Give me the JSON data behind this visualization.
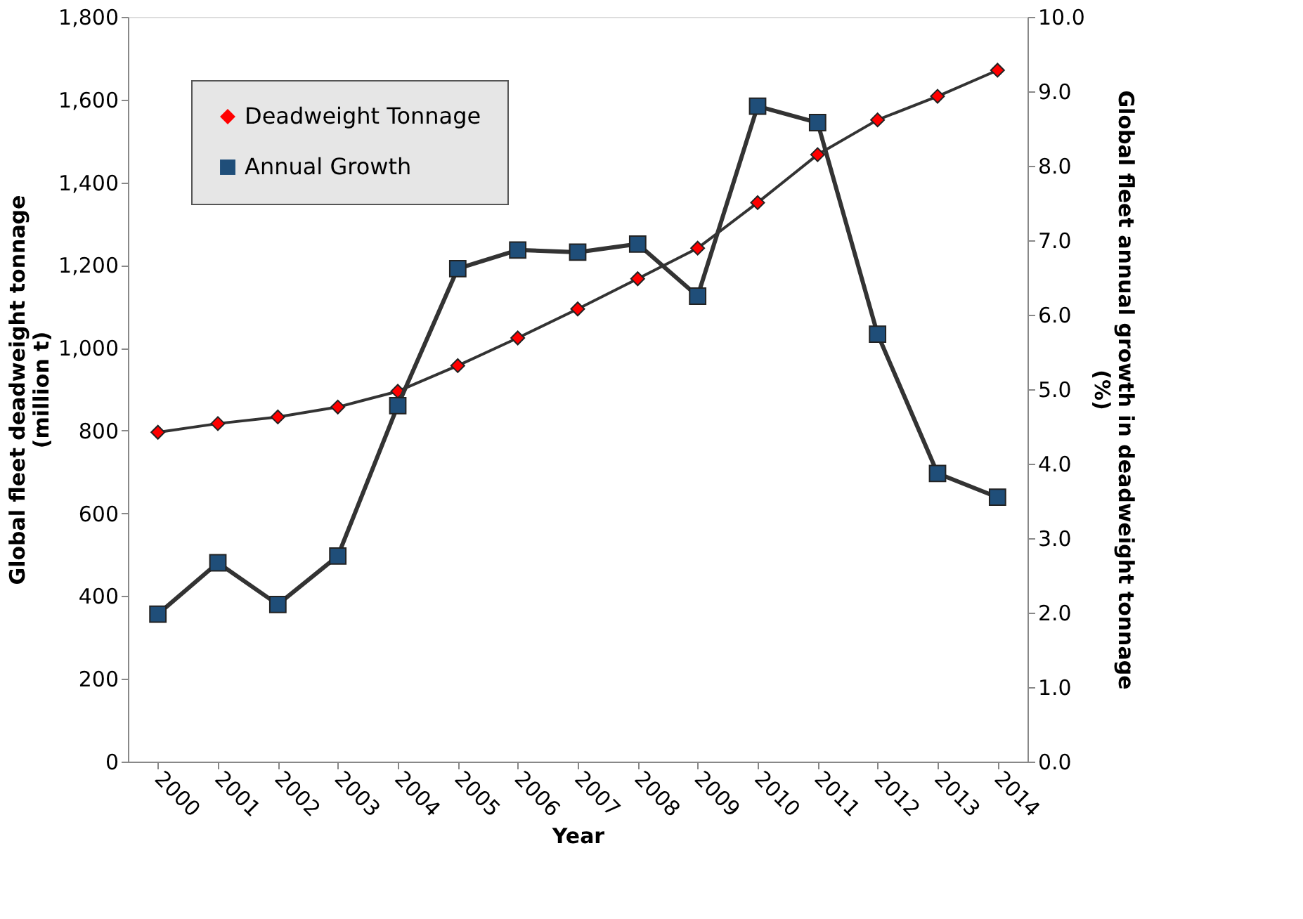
{
  "chart_data": {
    "type": "line",
    "xlabel": "Year",
    "ylabel": "Global fleet deadweight tonnage\n(million t)",
    "y2label": "Global fleet annual growth in deadweight tonnage\n(%)",
    "categories": [
      "2000",
      "2001",
      "2002",
      "2003",
      "2004",
      "2005",
      "2006",
      "2007",
      "2008",
      "2009",
      "2010",
      "2011",
      "2012",
      "2013",
      "2014"
    ],
    "series": [
      {
        "name": "Deadweight Tonnage",
        "color": "#ff0000",
        "marker": "diamond",
        "values": [
          796,
          817,
          833,
          857,
          895,
          957,
          1024,
          1094,
          1167,
          1241,
          1351,
          1467,
          1551,
          1608,
          1671
        ]
      },
      {
        "name": "Annual Growth",
        "color": "#1f4e79",
        "marker": "square",
        "axis": "y2",
        "values": [
          1.98,
          2.67,
          2.11,
          2.76,
          4.78,
          6.62,
          6.87,
          6.84,
          6.95,
          6.25,
          8.8,
          8.58,
          5.74,
          3.87,
          3.55
        ]
      }
    ],
    "ylim": [
      0,
      1800
    ],
    "yticks": [
      0,
      200,
      400,
      600,
      800,
      {
        "value": 1000,
        "label": "1,000"
      },
      {
        "value": 1200,
        "label": "1,200"
      },
      {
        "value": 1400,
        "label": "1,400"
      },
      {
        "value": 1600,
        "label": "1,600"
      },
      {
        "value": 1800,
        "label": "1,800"
      }
    ],
    "y2lim": [
      0,
      10
    ],
    "y2ticks": [
      {
        "value": 0,
        "label": "0.0"
      },
      {
        "value": 1,
        "label": "1.0"
      },
      {
        "value": 2,
        "label": "2.0"
      },
      {
        "value": 3,
        "label": "3.0"
      },
      {
        "value": 4,
        "label": "4.0"
      },
      {
        "value": 5,
        "label": "5.0"
      },
      {
        "value": 6,
        "label": "6.0"
      },
      {
        "value": 7,
        "label": "7.0"
      },
      {
        "value": 8,
        "label": "8.0"
      },
      {
        "value": 9,
        "label": "9.0"
      },
      {
        "value": 10,
        "label": "10.0"
      }
    ],
    "grid": false,
    "legend": "top left"
  }
}
